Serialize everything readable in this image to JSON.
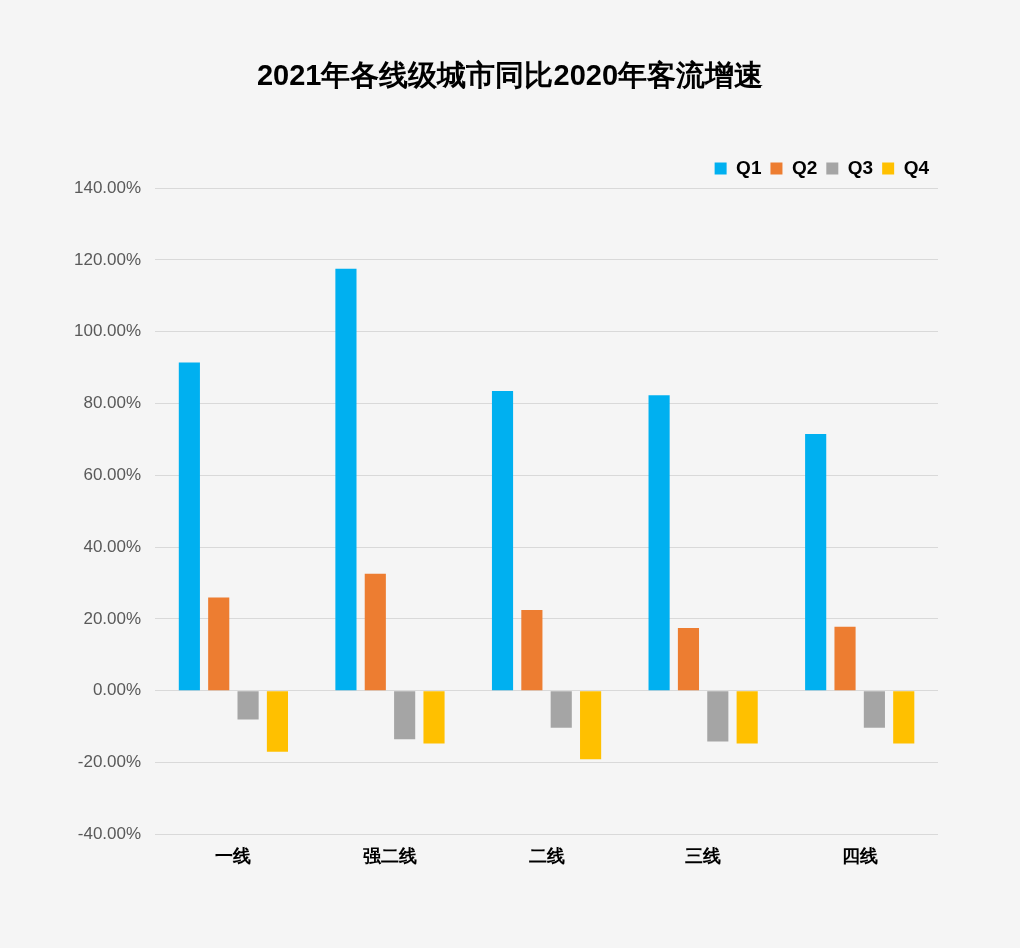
{
  "chart_data": {
    "type": "bar",
    "title": "2021年各线级城市同比2020年客流增速",
    "categories": [
      "一线",
      "强二线",
      "二线",
      "三线",
      "四线"
    ],
    "series": [
      {
        "name": "Q1",
        "color": "#00b0f0",
        "values": [
          91.4,
          117.5,
          83.5,
          82.3,
          71.5
        ]
      },
      {
        "name": "Q2",
        "color": "#ed7d31",
        "values": [
          26.0,
          32.6,
          22.5,
          17.5,
          17.8
        ]
      },
      {
        "name": "Q3",
        "color": "#a5a5a5",
        "values": [
          -8.0,
          -13.5,
          -10.3,
          -14.1,
          -10.3
        ]
      },
      {
        "name": "Q4",
        "color": "#ffc000",
        "values": [
          -17.0,
          -14.7,
          -19.1,
          -14.7,
          -14.7
        ]
      }
    ],
    "ylim": [
      -40,
      140
    ],
    "yticks": [
      {
        "value": -40,
        "label": "-40.00%"
      },
      {
        "value": -20,
        "label": "-20.00%"
      },
      {
        "value": 0,
        "label": "0.00%"
      },
      {
        "value": 20,
        "label": "20.00%"
      },
      {
        "value": 40,
        "label": "40.00%"
      },
      {
        "value": 60,
        "label": "60.00%"
      },
      {
        "value": 80,
        "label": "80.00%"
      },
      {
        "value": 100,
        "label": "100.00%"
      },
      {
        "value": 120,
        "label": "120.00%"
      },
      {
        "value": 140,
        "label": "140.00%"
      }
    ],
    "grid": "y",
    "legend": "top right"
  }
}
